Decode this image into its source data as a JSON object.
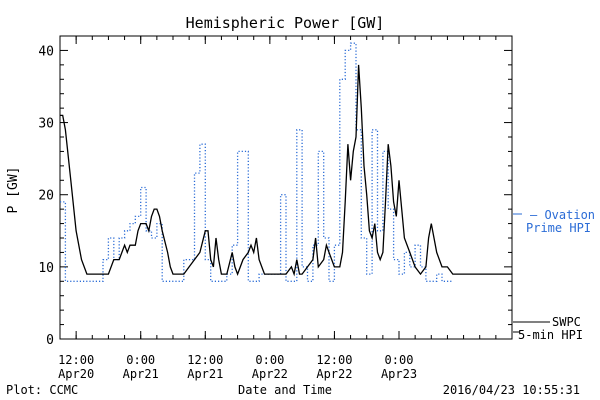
{
  "chart_data": {
    "type": "line",
    "title": "Hemispheric Power [GW]",
    "xlabel": "Date and Time",
    "ylabel": "P [GW]",
    "ylim": [
      0,
      42
    ],
    "xlim": [
      "2016-04-20T09:00",
      "2016-04-23T21:00"
    ],
    "yticks": [
      0,
      10,
      20,
      30,
      40
    ],
    "xticks": [
      {
        "at": "2016-04-20T12:00",
        "time": "12:00",
        "date": "Apr20"
      },
      {
        "at": "2016-04-21T00:00",
        "time": "0:00",
        "date": "Apr21"
      },
      {
        "at": "2016-04-21T12:00",
        "time": "12:00",
        "date": "Apr21"
      },
      {
        "at": "2016-04-22T00:00",
        "time": "0:00",
        "date": "Apr22"
      },
      {
        "at": "2016-04-22T12:00",
        "time": "12:00",
        "date": "Apr22"
      },
      {
        "at": "2016-04-23T00:00",
        "time": "0:00",
        "date": "Apr23"
      }
    ],
    "grid": false,
    "legend_position": "right",
    "series": [
      {
        "name": "SWPC 5-min HPI",
        "legend_lines": [
          "SWPC",
          "5-min HPI"
        ],
        "color": "#000000",
        "style": "solid",
        "points": [
          [
            "2016-04-20T09:00",
            31
          ],
          [
            "2016-04-20T09:30",
            31
          ],
          [
            "2016-04-20T10:00",
            29
          ],
          [
            "2016-04-20T11:00",
            22
          ],
          [
            "2016-04-20T12:00",
            15
          ],
          [
            "2016-04-20T13:00",
            11
          ],
          [
            "2016-04-20T14:00",
            9
          ],
          [
            "2016-04-20T15:00",
            9
          ],
          [
            "2016-04-20T16:00",
            9
          ],
          [
            "2016-04-20T18:00",
            9
          ],
          [
            "2016-04-20T19:00",
            11
          ],
          [
            "2016-04-20T20:00",
            11
          ],
          [
            "2016-04-20T20:30",
            12
          ],
          [
            "2016-04-20T21:00",
            13
          ],
          [
            "2016-04-20T21:30",
            12
          ],
          [
            "2016-04-20T22:00",
            13
          ],
          [
            "2016-04-20T23:00",
            13
          ],
          [
            "2016-04-20T23:30",
            15
          ],
          [
            "2016-04-21T00:00",
            16
          ],
          [
            "2016-04-21T01:00",
            16
          ],
          [
            "2016-04-21T01:30",
            15
          ],
          [
            "2016-04-21T02:00",
            17
          ],
          [
            "2016-04-21T02:30",
            18
          ],
          [
            "2016-04-21T03:00",
            18
          ],
          [
            "2016-04-21T03:30",
            17
          ],
          [
            "2016-04-21T04:00",
            15
          ],
          [
            "2016-04-21T05:00",
            12
          ],
          [
            "2016-04-21T05:30",
            10
          ],
          [
            "2016-04-21T06:00",
            9
          ],
          [
            "2016-04-21T07:00",
            9
          ],
          [
            "2016-04-21T08:00",
            9
          ],
          [
            "2016-04-21T09:00",
            10
          ],
          [
            "2016-04-21T10:00",
            11
          ],
          [
            "2016-04-21T11:00",
            12
          ],
          [
            "2016-04-21T12:00",
            15
          ],
          [
            "2016-04-21T12:30",
            15
          ],
          [
            "2016-04-21T13:00",
            11
          ],
          [
            "2016-04-21T13:30",
            10
          ],
          [
            "2016-04-21T14:00",
            14
          ],
          [
            "2016-04-21T14:30",
            11
          ],
          [
            "2016-04-21T15:00",
            9
          ],
          [
            "2016-04-21T16:00",
            9
          ],
          [
            "2016-04-21T17:00",
            12
          ],
          [
            "2016-04-21T17:30",
            10
          ],
          [
            "2016-04-21T18:00",
            9
          ],
          [
            "2016-04-21T19:00",
            11
          ],
          [
            "2016-04-21T20:00",
            12
          ],
          [
            "2016-04-21T20:30",
            13
          ],
          [
            "2016-04-21T21:00",
            12
          ],
          [
            "2016-04-21T21:30",
            14
          ],
          [
            "2016-04-21T22:00",
            11
          ],
          [
            "2016-04-21T22:30",
            10
          ],
          [
            "2016-04-21T23:00",
            9
          ],
          [
            "2016-04-22T00:00",
            9
          ],
          [
            "2016-04-22T01:00",
            9
          ],
          [
            "2016-04-22T02:00",
            9
          ],
          [
            "2016-04-22T03:00",
            9
          ],
          [
            "2016-04-22T04:00",
            10
          ],
          [
            "2016-04-22T04:30",
            9
          ],
          [
            "2016-04-22T05:00",
            11
          ],
          [
            "2016-04-22T05:30",
            9
          ],
          [
            "2016-04-22T06:00",
            9
          ],
          [
            "2016-04-22T07:00",
            10
          ],
          [
            "2016-04-22T08:00",
            11
          ],
          [
            "2016-04-22T08:30",
            14
          ],
          [
            "2016-04-22T09:00",
            10
          ],
          [
            "2016-04-22T10:00",
            11
          ],
          [
            "2016-04-22T10:30",
            13
          ],
          [
            "2016-04-22T11:00",
            12
          ],
          [
            "2016-04-22T11:30",
            11
          ],
          [
            "2016-04-22T12:00",
            10
          ],
          [
            "2016-04-22T13:00",
            10
          ],
          [
            "2016-04-22T13:30",
            12
          ],
          [
            "2016-04-22T14:00",
            19
          ],
          [
            "2016-04-22T14:30",
            27
          ],
          [
            "2016-04-22T15:00",
            22
          ],
          [
            "2016-04-22T15:30",
            26
          ],
          [
            "2016-04-22T16:00",
            28
          ],
          [
            "2016-04-22T16:30",
            38
          ],
          [
            "2016-04-22T17:00",
            32
          ],
          [
            "2016-04-22T17:30",
            24
          ],
          [
            "2016-04-22T18:00",
            20
          ],
          [
            "2016-04-22T18:30",
            15
          ],
          [
            "2016-04-22T19:00",
            14
          ],
          [
            "2016-04-22T19:30",
            16
          ],
          [
            "2016-04-22T20:00",
            12
          ],
          [
            "2016-04-22T20:30",
            11
          ],
          [
            "2016-04-22T21:00",
            12
          ],
          [
            "2016-04-22T21:30",
            19
          ],
          [
            "2016-04-22T22:00",
            27
          ],
          [
            "2016-04-22T22:30",
            24
          ],
          [
            "2016-04-22T23:00",
            19
          ],
          [
            "2016-04-22T23:30",
            17
          ],
          [
            "2016-04-23T00:00",
            22
          ],
          [
            "2016-04-23T00:30",
            18
          ],
          [
            "2016-04-23T01:00",
            14
          ],
          [
            "2016-04-23T02:00",
            12
          ],
          [
            "2016-04-23T03:00",
            10
          ],
          [
            "2016-04-23T04:00",
            9
          ],
          [
            "2016-04-23T05:00",
            10
          ],
          [
            "2016-04-23T05:30",
            14
          ],
          [
            "2016-04-23T06:00",
            16
          ],
          [
            "2016-04-23T06:30",
            14
          ],
          [
            "2016-04-23T07:00",
            12
          ],
          [
            "2016-04-23T08:00",
            10
          ],
          [
            "2016-04-23T09:00",
            10
          ],
          [
            "2016-04-23T10:00",
            9
          ],
          [
            "2016-04-23T12:00",
            9
          ],
          [
            "2016-04-23T16:00",
            9
          ],
          [
            "2016-04-23T21:00",
            9
          ]
        ]
      },
      {
        "name": "Ovation Prime HPI",
        "legend_lines": [
          "— Ovation",
          "Prime HPI"
        ],
        "color": "#2b6cd6",
        "style": "dotted-step",
        "points": [
          [
            "2016-04-20T09:00",
            19
          ],
          [
            "2016-04-20T10:00",
            8
          ],
          [
            "2016-04-20T16:00",
            8
          ],
          [
            "2016-04-20T17:00",
            11
          ],
          [
            "2016-04-20T18:00",
            14
          ],
          [
            "2016-04-20T19:00",
            11
          ],
          [
            "2016-04-20T20:00",
            14
          ],
          [
            "2016-04-20T21:00",
            15
          ],
          [
            "2016-04-20T22:00",
            16
          ],
          [
            "2016-04-20T23:00",
            17
          ],
          [
            "2016-04-21T00:00",
            21
          ],
          [
            "2016-04-21T01:00",
            15
          ],
          [
            "2016-04-21T02:00",
            14
          ],
          [
            "2016-04-21T03:00",
            16
          ],
          [
            "2016-04-21T04:00",
            8
          ],
          [
            "2016-04-21T05:00",
            8
          ],
          [
            "2016-04-21T06:00",
            8
          ],
          [
            "2016-04-21T08:00",
            11
          ],
          [
            "2016-04-21T10:00",
            23
          ],
          [
            "2016-04-21T11:00",
            27
          ],
          [
            "2016-04-21T12:00",
            11
          ],
          [
            "2016-04-21T13:00",
            8
          ],
          [
            "2016-04-21T14:00",
            8
          ],
          [
            "2016-04-21T15:00",
            8
          ],
          [
            "2016-04-21T16:00",
            9
          ],
          [
            "2016-04-21T17:00",
            13
          ],
          [
            "2016-04-21T18:00",
            26
          ],
          [
            "2016-04-21T20:00",
            8
          ],
          [
            "2016-04-21T22:00",
            9
          ],
          [
            "2016-04-22T00:00",
            9
          ],
          [
            "2016-04-22T02:00",
            20
          ],
          [
            "2016-04-22T03:00",
            8
          ],
          [
            "2016-04-22T04:00",
            8
          ],
          [
            "2016-04-22T05:00",
            29
          ],
          [
            "2016-04-22T06:00",
            10
          ],
          [
            "2016-04-22T07:00",
            8
          ],
          [
            "2016-04-22T08:00",
            13
          ],
          [
            "2016-04-22T09:00",
            26
          ],
          [
            "2016-04-22T10:00",
            14
          ],
          [
            "2016-04-22T11:00",
            8
          ],
          [
            "2016-04-22T12:00",
            13
          ],
          [
            "2016-04-22T13:00",
            36
          ],
          [
            "2016-04-22T14:00",
            40
          ],
          [
            "2016-04-22T15:00",
            41
          ],
          [
            "2016-04-22T16:00",
            29
          ],
          [
            "2016-04-22T17:00",
            14
          ],
          [
            "2016-04-22T18:00",
            9
          ],
          [
            "2016-04-22T19:00",
            29
          ],
          [
            "2016-04-22T20:00",
            15
          ],
          [
            "2016-04-22T21:00",
            26
          ],
          [
            "2016-04-22T22:00",
            18
          ],
          [
            "2016-04-22T23:00",
            11
          ],
          [
            "2016-04-23T00:00",
            9
          ],
          [
            "2016-04-23T01:00",
            12
          ],
          [
            "2016-04-23T02:00",
            10
          ],
          [
            "2016-04-23T03:00",
            13
          ],
          [
            "2016-04-23T04:00",
            10
          ],
          [
            "2016-04-23T05:00",
            8
          ],
          [
            "2016-04-23T06:00",
            8
          ],
          [
            "2016-04-23T07:00",
            9
          ],
          [
            "2016-04-23T08:00",
            8
          ],
          [
            "2016-04-23T09:00",
            8
          ]
        ]
      }
    ],
    "annotations": {
      "bottom_left": "Plot: CCMC",
      "bottom_right": "2016/04/23 10:55:31"
    }
  }
}
